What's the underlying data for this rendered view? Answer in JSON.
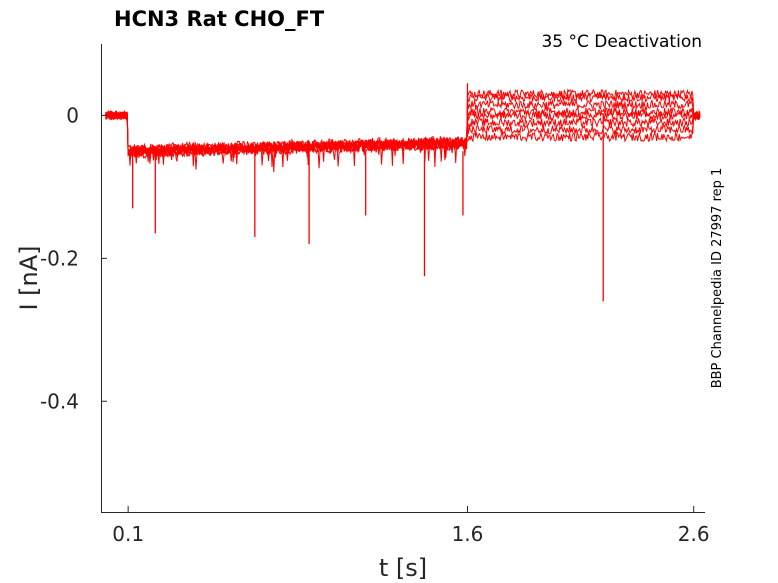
{
  "chart_data": {
    "type": "line",
    "title": "HCN3  Rat  CHO_FT",
    "condition": "35 °C  Deactivation",
    "side_label": "BBP Channelpedia ID 27997 rep 1",
    "xlabel": "t [s]",
    "ylabel": "I [nA]",
    "xlim": [
      -0.02,
      2.65
    ],
    "ylim": [
      -0.555,
      0.1
    ],
    "x_ticks": [
      0.1,
      1.6,
      2.6
    ],
    "x_tick_labels": [
      "0.1",
      "1.6",
      "2.6"
    ],
    "y_ticks": [
      0,
      -0.2,
      -0.4
    ],
    "y_tick_labels": [
      "0",
      "-0.2",
      "-0.4"
    ],
    "grid": false,
    "line_color": "#ff0000",
    "series_levels_after_1_6s": [
      0.03,
      0.025,
      0.015,
      0.005,
      0.0,
      -0.01,
      -0.02,
      -0.03
    ],
    "baseline_before_0_1s": 0.0,
    "level_0_1_to_1_6s": [
      -0.06,
      -0.04
    ],
    "spikes": [
      {
        "x": 0.12,
        "y": -0.13
      },
      {
        "x": 0.22,
        "y": -0.165
      },
      {
        "x": 0.66,
        "y": -0.17
      },
      {
        "x": 0.9,
        "y": -0.18
      },
      {
        "x": 1.15,
        "y": -0.14
      },
      {
        "x": 1.41,
        "y": -0.225
      },
      {
        "x": 1.58,
        "y": -0.14
      },
      {
        "x": 2.2,
        "y": -0.26
      }
    ]
  }
}
